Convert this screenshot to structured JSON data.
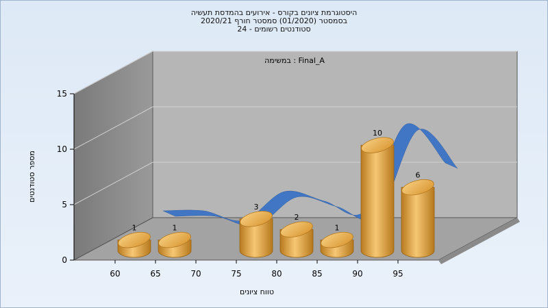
{
  "title_lines": [
    "היסטוגרמת ציונים בקורס - אירועים בהמדסת תעשיה",
    "בסמסטר  (01/2020)  סמסטר חורף  2020/21",
    "סטודנטים רשומים - 24"
  ],
  "colors": {
    "bar": "#e8a640",
    "bar_top": "#f3c06c",
    "curve": "#3a73c4",
    "back_wall": "#b6b6b6",
    "side_wall": "#8e8e8e",
    "floor": "#a3a3a3"
  },
  "chart_data": {
    "type": "bar",
    "subtitle": "במשימה : Final_A",
    "xlabel": "טווח ציונים",
    "ylabel": "מספר סטודנטים",
    "ylim": [
      0,
      15
    ],
    "y_ticks": [
      0,
      5,
      10,
      15
    ],
    "x_ticks": [
      60,
      65,
      70,
      75,
      80,
      85,
      90,
      95
    ],
    "categories": [
      "60-65",
      "65-70",
      "70-75",
      "75-80",
      "80-85",
      "85-90",
      "90-95",
      "95-100"
    ],
    "values": [
      1,
      1,
      0,
      3,
      2,
      1,
      10,
      6
    ],
    "data_labels": [
      "1",
      "1",
      "",
      "3",
      "2",
      "1",
      "10",
      "6"
    ],
    "series": [
      {
        "values": [
          1,
          1,
          0,
          3,
          2,
          1,
          10,
          6
        ]
      }
    ],
    "grid": true,
    "legend": "none"
  }
}
